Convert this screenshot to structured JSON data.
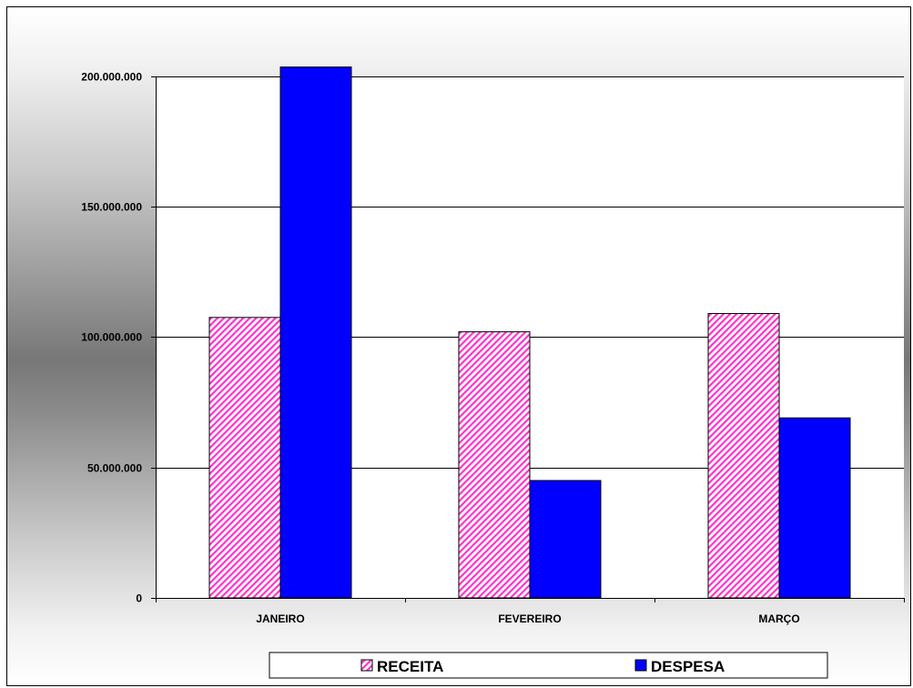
{
  "chart_data": {
    "type": "bar",
    "categories": [
      "JANEIRO",
      "FEVEREIRO",
      "MARÇO"
    ],
    "series": [
      {
        "name": "RECEITA",
        "values": [
          107500000,
          102000000,
          109000000
        ],
        "color": "#ff33cc",
        "fill": "diagonal-hatch"
      },
      {
        "name": "DESPESA",
        "values": [
          203500000,
          45000000,
          69000000
        ],
        "color": "#0000ff",
        "fill": "solid"
      }
    ],
    "yticks": [
      "0",
      "50.000.000",
      "100.000.000",
      "150.000.000",
      "200.000.000"
    ],
    "ytick_values": [
      0,
      50000000,
      100000000,
      150000000,
      200000000
    ],
    "ylim": [
      0,
      200000000
    ],
    "grid": true,
    "legend": "bottom"
  }
}
